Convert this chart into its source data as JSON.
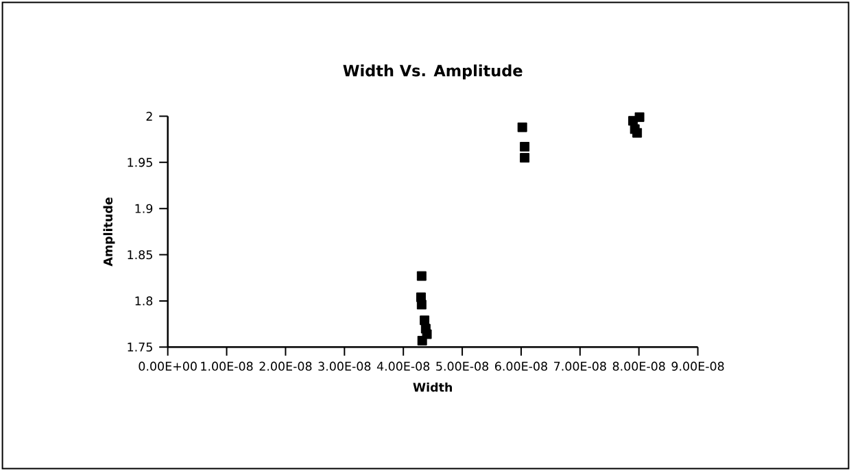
{
  "chart_data": {
    "type": "scatter",
    "title": "Width Vs. Amplitude",
    "xlabel": "Width",
    "ylabel": "Amplitude",
    "x": [
      4.31e-08,
      4.3e-08,
      4.31e-08,
      4.36e-08,
      4.38e-08,
      4.4e-08,
      4.32e-08,
      6.02e-08,
      6.06e-08,
      6.06e-08,
      8.01e-08,
      7.9e-08,
      7.93e-08,
      7.97e-08
    ],
    "values": [
      1.827,
      1.804,
      1.796,
      1.779,
      1.77,
      1.764,
      1.757,
      1.988,
      1.967,
      1.955,
      1.999,
      1.995,
      1.986,
      1.982
    ],
    "color": "#000000",
    "marker": "square",
    "xlim": [
      0,
      9e-08
    ],
    "ylim": [
      1.75,
      2
    ],
    "xticks": [
      {
        "value": 0,
        "label": "0.00E+00"
      },
      {
        "value": 1e-08,
        "label": "1.00E-08"
      },
      {
        "value": 2e-08,
        "label": "2.00E-08"
      },
      {
        "value": 3e-08,
        "label": "3.00E-08"
      },
      {
        "value": 4e-08,
        "label": "4.00E-08"
      },
      {
        "value": 5e-08,
        "label": "5.00E-08"
      },
      {
        "value": 6e-08,
        "label": "6.00E-08"
      },
      {
        "value": 7e-08,
        "label": "7.00E-08"
      },
      {
        "value": 8e-08,
        "label": "8.00E-08"
      },
      {
        "value": 9e-08,
        "label": "9.00E-08"
      }
    ],
    "yticks": [
      1.75,
      1.8,
      1.85,
      1.9,
      1.95,
      2
    ]
  }
}
